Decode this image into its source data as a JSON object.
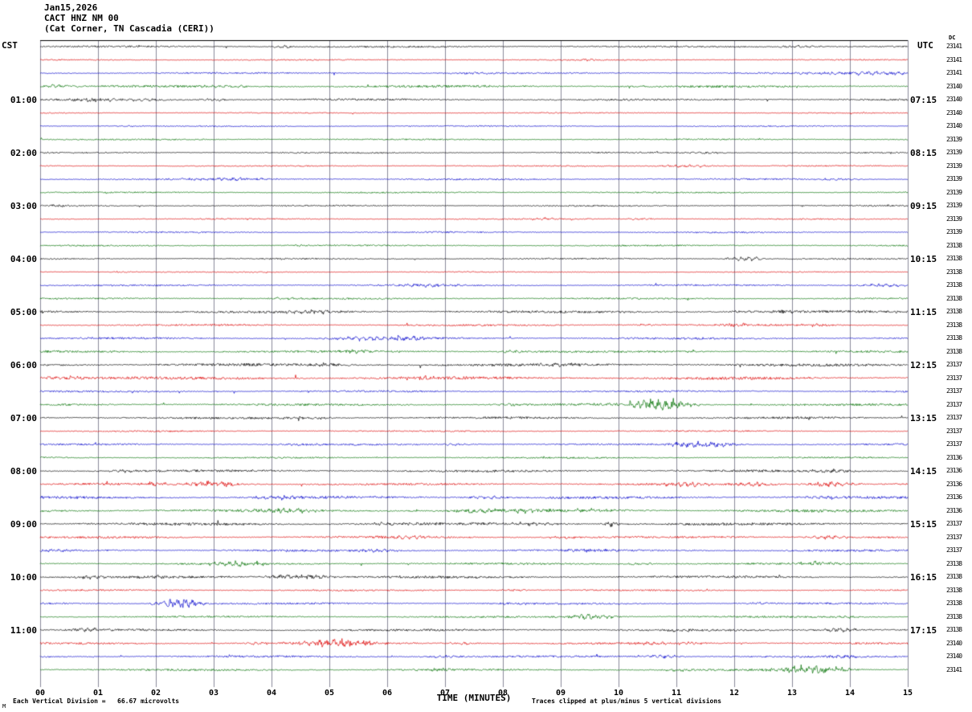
{
  "title": {
    "date": "Jan15,2026",
    "station": "CACT HNZ NM 00",
    "location": "(Cat Corner, TN Cascadia (CERI))"
  },
  "axes": {
    "left_header": "CST",
    "right_header": "UTC",
    "dc_header": "DC"
  },
  "footer": {
    "vertical_division": "Each Vertical Division =   66.67 microvolts",
    "clipped": "Traces clipped at plus/minus 5 vertical divisions",
    "corner_mark": "M"
  },
  "colors": {
    "grid": "#8a8a9a",
    "axis": "#000000"
  },
  "chart_data": {
    "type": "line",
    "title": "CACT HNZ NM 00 helicorder, Cat Corner TN, Jan 15 2026",
    "xlabel": "TIME (MINUTES)",
    "x_range": [
      0,
      15
    ],
    "minutes_per_line": 15,
    "x_ticks": [
      "00",
      "01",
      "02",
      "03",
      "04",
      "05",
      "06",
      "07",
      "08",
      "09",
      "10",
      "11",
      "12",
      "13",
      "14",
      "15"
    ],
    "trace_color_cycle": [
      "#000000",
      "#dd0000",
      "#0000cc",
      "#007000"
    ],
    "traces": [
      {
        "cst": "",
        "utc": "",
        "dc": "23141",
        "noise": 1.0,
        "events": [
          [
            4.2,
            2.5,
            0.15
          ],
          [
            13.2,
            2.0,
            0.3
          ]
        ]
      },
      {
        "cst": "",
        "utc": "",
        "dc": "23141",
        "noise": 0.7,
        "events": [
          [
            9.5,
            1.5,
            0.1
          ]
        ]
      },
      {
        "cst": "",
        "utc": "",
        "dc": "23141",
        "noise": 0.9,
        "events": [
          [
            14.3,
            2.5,
            0.8
          ],
          [
            7.5,
            1.2,
            0.3
          ]
        ]
      },
      {
        "cst": "",
        "utc": "",
        "dc": "23140",
        "noise": 1.3,
        "events": [
          [
            0.3,
            3.0,
            0.2
          ],
          [
            3.2,
            1.5,
            0.3
          ]
        ]
      },
      {
        "cst": "01:00",
        "utc": "07:15",
        "dc": "23140",
        "noise": 1.1,
        "events": [
          [
            1.0,
            2.5,
            0.3
          ],
          [
            1.8,
            2.0,
            0.2
          ],
          [
            3.0,
            1.8,
            0.2
          ]
        ]
      },
      {
        "cst": "",
        "utc": "",
        "dc": "23140",
        "noise": 0.6,
        "events": []
      },
      {
        "cst": "",
        "utc": "",
        "dc": "23140",
        "noise": 0.7,
        "events": [
          [
            1.5,
            1.0,
            0.2
          ]
        ]
      },
      {
        "cst": "",
        "utc": "",
        "dc": "23139",
        "noise": 0.8,
        "events": []
      },
      {
        "cst": "02:00",
        "utc": "08:15",
        "dc": "23139",
        "noise": 0.8,
        "events": [
          [
            11.5,
            1.5,
            0.2
          ]
        ]
      },
      {
        "cst": "",
        "utc": "",
        "dc": "23139",
        "noise": 0.7,
        "events": [
          [
            11.2,
            2.0,
            0.4
          ]
        ]
      },
      {
        "cst": "",
        "utc": "",
        "dc": "23139",
        "noise": 0.9,
        "events": [
          [
            3.3,
            1.8,
            0.6
          ],
          [
            13.8,
            1.2,
            0.3
          ]
        ]
      },
      {
        "cst": "",
        "utc": "",
        "dc": "23139",
        "noise": 0.8,
        "events": []
      },
      {
        "cst": "03:00",
        "utc": "09:15",
        "dc": "23139",
        "noise": 0.8,
        "events": [
          [
            0.3,
            1.5,
            0.15
          ]
        ]
      },
      {
        "cst": "",
        "utc": "",
        "dc": "23139",
        "noise": 0.7,
        "events": [
          [
            8.7,
            2.2,
            0.15
          ],
          [
            10.4,
            1.8,
            0.15
          ]
        ]
      },
      {
        "cst": "",
        "utc": "",
        "dc": "23139",
        "noise": 0.8,
        "events": []
      },
      {
        "cst": "",
        "utc": "",
        "dc": "23138",
        "noise": 0.8,
        "events": [
          [
            4.5,
            1.2,
            0.2
          ]
        ]
      },
      {
        "cst": "04:00",
        "utc": "10:15",
        "dc": "23138",
        "noise": 0.8,
        "events": [
          [
            12.1,
            2.5,
            0.2
          ],
          [
            12.35,
            2.0,
            0.1
          ]
        ]
      },
      {
        "cst": "",
        "utc": "",
        "dc": "23138",
        "noise": 0.6,
        "events": [
          [
            1.4,
            1.2,
            0.15
          ]
        ]
      },
      {
        "cst": "",
        "utc": "",
        "dc": "23138",
        "noise": 0.9,
        "events": [
          [
            6.7,
            2.0,
            0.4
          ],
          [
            14.6,
            2.2,
            0.4
          ]
        ]
      },
      {
        "cst": "",
        "utc": "",
        "dc": "23138",
        "noise": 0.9,
        "events": [
          [
            4.2,
            1.5,
            0.3
          ]
        ]
      },
      {
        "cst": "05:00",
        "utc": "11:15",
        "dc": "23138",
        "noise": 1.4,
        "events": [
          [
            4.8,
            2.5,
            0.3
          ],
          [
            12.1,
            2.0,
            0.2
          ],
          [
            12.9,
            1.8,
            0.2
          ]
        ]
      },
      {
        "cst": "",
        "utc": "",
        "dc": "23138",
        "noise": 1.0,
        "events": [
          [
            12.0,
            2.0,
            0.2
          ],
          [
            13.4,
            1.8,
            0.2
          ],
          [
            10.5,
            1.5,
            0.2
          ]
        ]
      },
      {
        "cst": "",
        "utc": "",
        "dc": "23138",
        "noise": 1.1,
        "events": [
          [
            5.8,
            2.8,
            0.5
          ],
          [
            6.3,
            2.0,
            0.3
          ],
          [
            11.3,
            1.5,
            0.2
          ]
        ]
      },
      {
        "cst": "",
        "utc": "",
        "dc": "23138",
        "noise": 1.2,
        "events": [
          [
            5.5,
            2.0,
            0.3
          ],
          [
            8.2,
            2.5,
            0.2
          ]
        ]
      },
      {
        "cst": "06:00",
        "utc": "12:15",
        "dc": "23137",
        "noise": 1.5,
        "events": [
          [
            5.0,
            2.0,
            0.3
          ],
          [
            9.0,
            1.8,
            0.3
          ]
        ]
      },
      {
        "cst": "",
        "utc": "",
        "dc": "23137",
        "noise": 1.6,
        "events": [
          [
            0.5,
            2.5,
            0.4
          ],
          [
            6.5,
            1.8,
            0.3
          ]
        ]
      },
      {
        "cst": "",
        "utc": "",
        "dc": "23137",
        "noise": 1.0,
        "events": []
      },
      {
        "cst": "",
        "utc": "",
        "dc": "23137",
        "noise": 1.2,
        "events": [
          [
            10.55,
            8.0,
            0.35
          ],
          [
            10.9,
            4.0,
            0.3
          ],
          [
            8.2,
            2.0,
            0.2
          ]
        ]
      },
      {
        "cst": "07:00",
        "utc": "13:15",
        "dc": "23137",
        "noise": 1.2,
        "events": [
          [
            4.6,
            1.8,
            0.3
          ]
        ]
      },
      {
        "cst": "",
        "utc": "",
        "dc": "23137",
        "noise": 0.8,
        "events": []
      },
      {
        "cst": "",
        "utc": "",
        "dc": "23137",
        "noise": 1.0,
        "events": [
          [
            11.35,
            5.0,
            0.3
          ],
          [
            11.7,
            2.5,
            0.3
          ],
          [
            4.5,
            1.5,
            0.3
          ],
          [
            7.2,
            1.8,
            0.2
          ]
        ]
      },
      {
        "cst": "",
        "utc": "",
        "dc": "23136",
        "noise": 0.9,
        "events": []
      },
      {
        "cst": "08:00",
        "utc": "14:15",
        "dc": "23136",
        "noise": 1.3,
        "events": [
          [
            13.7,
            2.5,
            0.3
          ],
          [
            1.5,
            1.5,
            0.3
          ]
        ]
      },
      {
        "cst": "",
        "utc": "",
        "dc": "23136",
        "noise": 1.2,
        "events": [
          [
            3.0,
            4.5,
            0.35
          ],
          [
            11.1,
            3.5,
            0.3
          ],
          [
            12.35,
            3.0,
            0.25
          ],
          [
            13.65,
            3.5,
            0.3
          ],
          [
            2.0,
            2.0,
            0.2
          ]
        ]
      },
      {
        "cst": "",
        "utc": "",
        "dc": "23136",
        "noise": 1.4,
        "events": [
          [
            4.2,
            2.5,
            0.4
          ],
          [
            7.7,
            2.2,
            0.3
          ],
          [
            13.6,
            2.0,
            0.3
          ]
        ]
      },
      {
        "cst": "",
        "utc": "",
        "dc": "23136",
        "noise": 1.5,
        "events": [
          [
            4.3,
            2.5,
            0.4
          ],
          [
            7.6,
            3.0,
            0.3
          ],
          [
            8.3,
            3.0,
            0.3
          ],
          [
            9.5,
            2.0,
            0.3
          ]
        ]
      },
      {
        "cst": "09:00",
        "utc": "15:15",
        "dc": "23137",
        "noise": 1.5,
        "events": [
          [
            8.5,
            2.5,
            0.3
          ],
          [
            9.9,
            3.5,
            0.1
          ],
          [
            6.0,
            2.0,
            0.3
          ]
        ]
      },
      {
        "cst": "",
        "utc": "",
        "dc": "23137",
        "noise": 1.2,
        "events": [
          [
            6.3,
            2.2,
            0.3
          ],
          [
            13.6,
            2.5,
            0.25
          ],
          [
            9.0,
            1.8,
            0.2
          ]
        ]
      },
      {
        "cst": "",
        "utc": "",
        "dc": "23137",
        "noise": 1.2,
        "events": [
          [
            5.8,
            2.2,
            0.3
          ],
          [
            9.5,
            2.0,
            0.3
          ],
          [
            0.3,
            1.8,
            0.2
          ]
        ]
      },
      {
        "cst": "",
        "utc": "",
        "dc": "23138",
        "noise": 1.1,
        "events": [
          [
            3.35,
            3.5,
            0.3
          ],
          [
            13.5,
            2.8,
            0.3
          ],
          [
            10.4,
            1.8,
            0.2
          ]
        ]
      },
      {
        "cst": "10:00",
        "utc": "16:15",
        "dc": "23138",
        "noise": 1.3,
        "events": [
          [
            4.5,
            3.5,
            0.4
          ],
          [
            0.9,
            2.0,
            0.2
          ],
          [
            2.0,
            1.8,
            0.2
          ]
        ]
      },
      {
        "cst": "",
        "utc": "",
        "dc": "23138",
        "noise": 0.9,
        "events": [
          [
            8.2,
            1.5,
            0.2
          ]
        ]
      },
      {
        "cst": "",
        "utc": "",
        "dc": "23138",
        "noise": 1.0,
        "events": [
          [
            2.35,
            6.0,
            0.25
          ],
          [
            2.6,
            3.0,
            0.2
          ],
          [
            8.2,
            1.8,
            0.2
          ],
          [
            12.4,
            1.5,
            0.2
          ]
        ]
      },
      {
        "cst": "",
        "utc": "",
        "dc": "23138",
        "noise": 1.0,
        "events": [
          [
            9.45,
            4.0,
            0.3
          ],
          [
            9.8,
            2.0,
            0.2
          ],
          [
            13.9,
            1.5,
            0.2
          ]
        ]
      },
      {
        "cst": "11:00",
        "utc": "17:15",
        "dc": "23138",
        "noise": 1.2,
        "events": [
          [
            0.8,
            2.5,
            0.25
          ],
          [
            13.8,
            3.0,
            0.3
          ],
          [
            11.0,
            1.5,
            0.2
          ]
        ]
      },
      {
        "cst": "",
        "utc": "",
        "dc": "23140",
        "noise": 1.1,
        "events": [
          [
            5.05,
            5.0,
            0.4
          ],
          [
            5.5,
            3.0,
            0.3
          ],
          [
            3.7,
            2.0,
            0.2
          ],
          [
            7.3,
            2.0,
            0.2
          ],
          [
            10.6,
            2.2,
            0.2
          ],
          [
            11.2,
            2.0,
            0.2
          ]
        ]
      },
      {
        "cst": "",
        "utc": "",
        "dc": "23140",
        "noise": 1.1,
        "events": [
          [
            7.0,
            2.0,
            0.3
          ],
          [
            10.7,
            2.5,
            0.3
          ],
          [
            13.9,
            1.8,
            0.2
          ]
        ]
      },
      {
        "cst": "",
        "utc": "",
        "dc": "23141",
        "noise": 1.1,
        "events": [
          [
            13.25,
            7.0,
            0.4
          ],
          [
            13.7,
            3.5,
            0.3
          ],
          [
            6.8,
            2.0,
            0.3
          ],
          [
            11.0,
            1.8,
            0.2
          ]
        ]
      }
    ]
  }
}
